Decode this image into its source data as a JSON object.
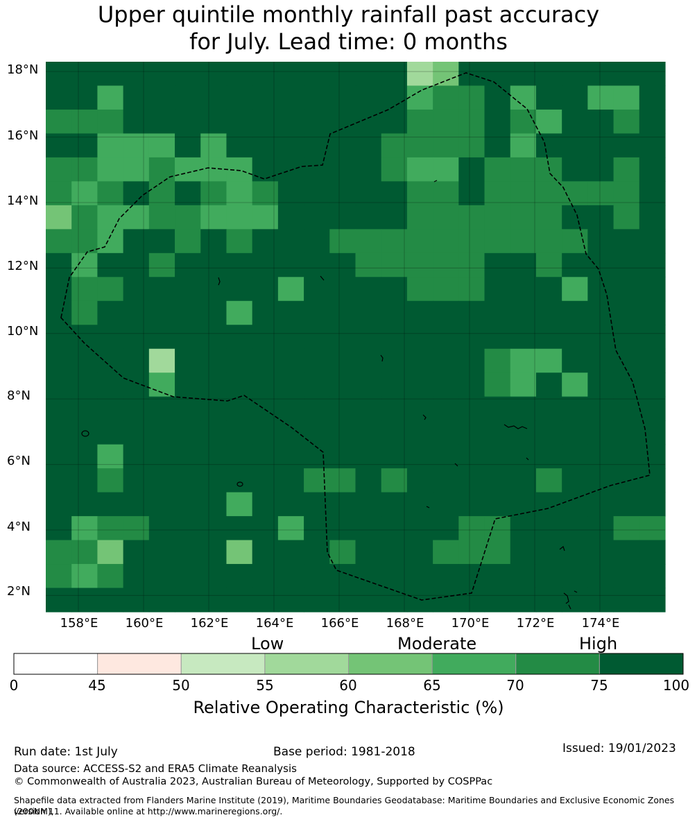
{
  "title": {
    "line1": "Upper quintile monthly rainfall past accuracy",
    "line2": "for July. Lead time: 0 months"
  },
  "map": {
    "lat_range": [
      "1.5°N",
      "18.3°N"
    ],
    "lon_range": [
      "157°E",
      "176°E"
    ],
    "lat_ticks": [
      "18°N",
      "16°N",
      "14°N",
      "12°N",
      "10°N",
      "8°N",
      "6°N",
      "4°N",
      "2°N"
    ],
    "lon_ticks": [
      "158°E",
      "160°E",
      "162°E",
      "164°E",
      "166°E",
      "168°E",
      "170°E",
      "172°E",
      "174°E"
    ],
    "grid_rows_north_to_south": [
      "777777777777773477777777",
      "775777777777775667577557",
      "666777777777776667657767",
      "775557577777766667577777",
      "665565557777765576667767",
      "656767656777776676666667",
      "465566555777776666667767",
      "665776767776666666666777",
      "757767777777666667767777",
      "766777777577776667775777",
      "767777757777777777777777",
      "777777777777777777777777",
      "777737777777777776557777",
      "777757777777777776575777",
      "777777777777777777777777",
      "777777777777777777777777",
      "775777777777777777777777",
      "776777777766767777767777",
      "777777757777777777777777",
      "756677777577777766777766",
      "664777747776777666777777",
      "656777777777777777777777",
      "777777777777777777777777"
    ],
    "legend": {
      "bounds": [
        0,
        45,
        50,
        55,
        60,
        65,
        70,
        75,
        100
      ],
      "colors": [
        "#ffffff",
        "#fee8e0",
        "#c7e9c0",
        "#a1d99b",
        "#74c476",
        "#41ab5d",
        "#238b45",
        "#005a32"
      ]
    },
    "boundary": "Exclusive Economic Zone (dashed)"
  },
  "categories": {
    "low": "Low",
    "moderate": "Moderate",
    "high": "High"
  },
  "colorbar": {
    "ticks": [
      "0",
      "45",
      "50",
      "55",
      "60",
      "65",
      "70",
      "75",
      "100"
    ],
    "label": "Relative Operating Characteristic (%)"
  },
  "footer": {
    "run_date": "Run date: 1st July",
    "base_period": "Base period: 1981-2018",
    "issued": "Issued: 19/01/2023",
    "data_source": "Data source: ACCESS-S2 and ERA5 Climate Reanalysis",
    "copyright": "© Commonwealth of Australia 2023, Australian Bureau of Meteorology, Supported by COSPPac",
    "shapefile_line1": "Shapefile data extracted from Flanders Marine Institute (2019), Maritime Boundaries Geodatabase: Maritime Boundaries and Exclusive Economic Zones (200NM),",
    "shapefile_line2": "version 11. Available online at http://www.marineregions.org/."
  }
}
